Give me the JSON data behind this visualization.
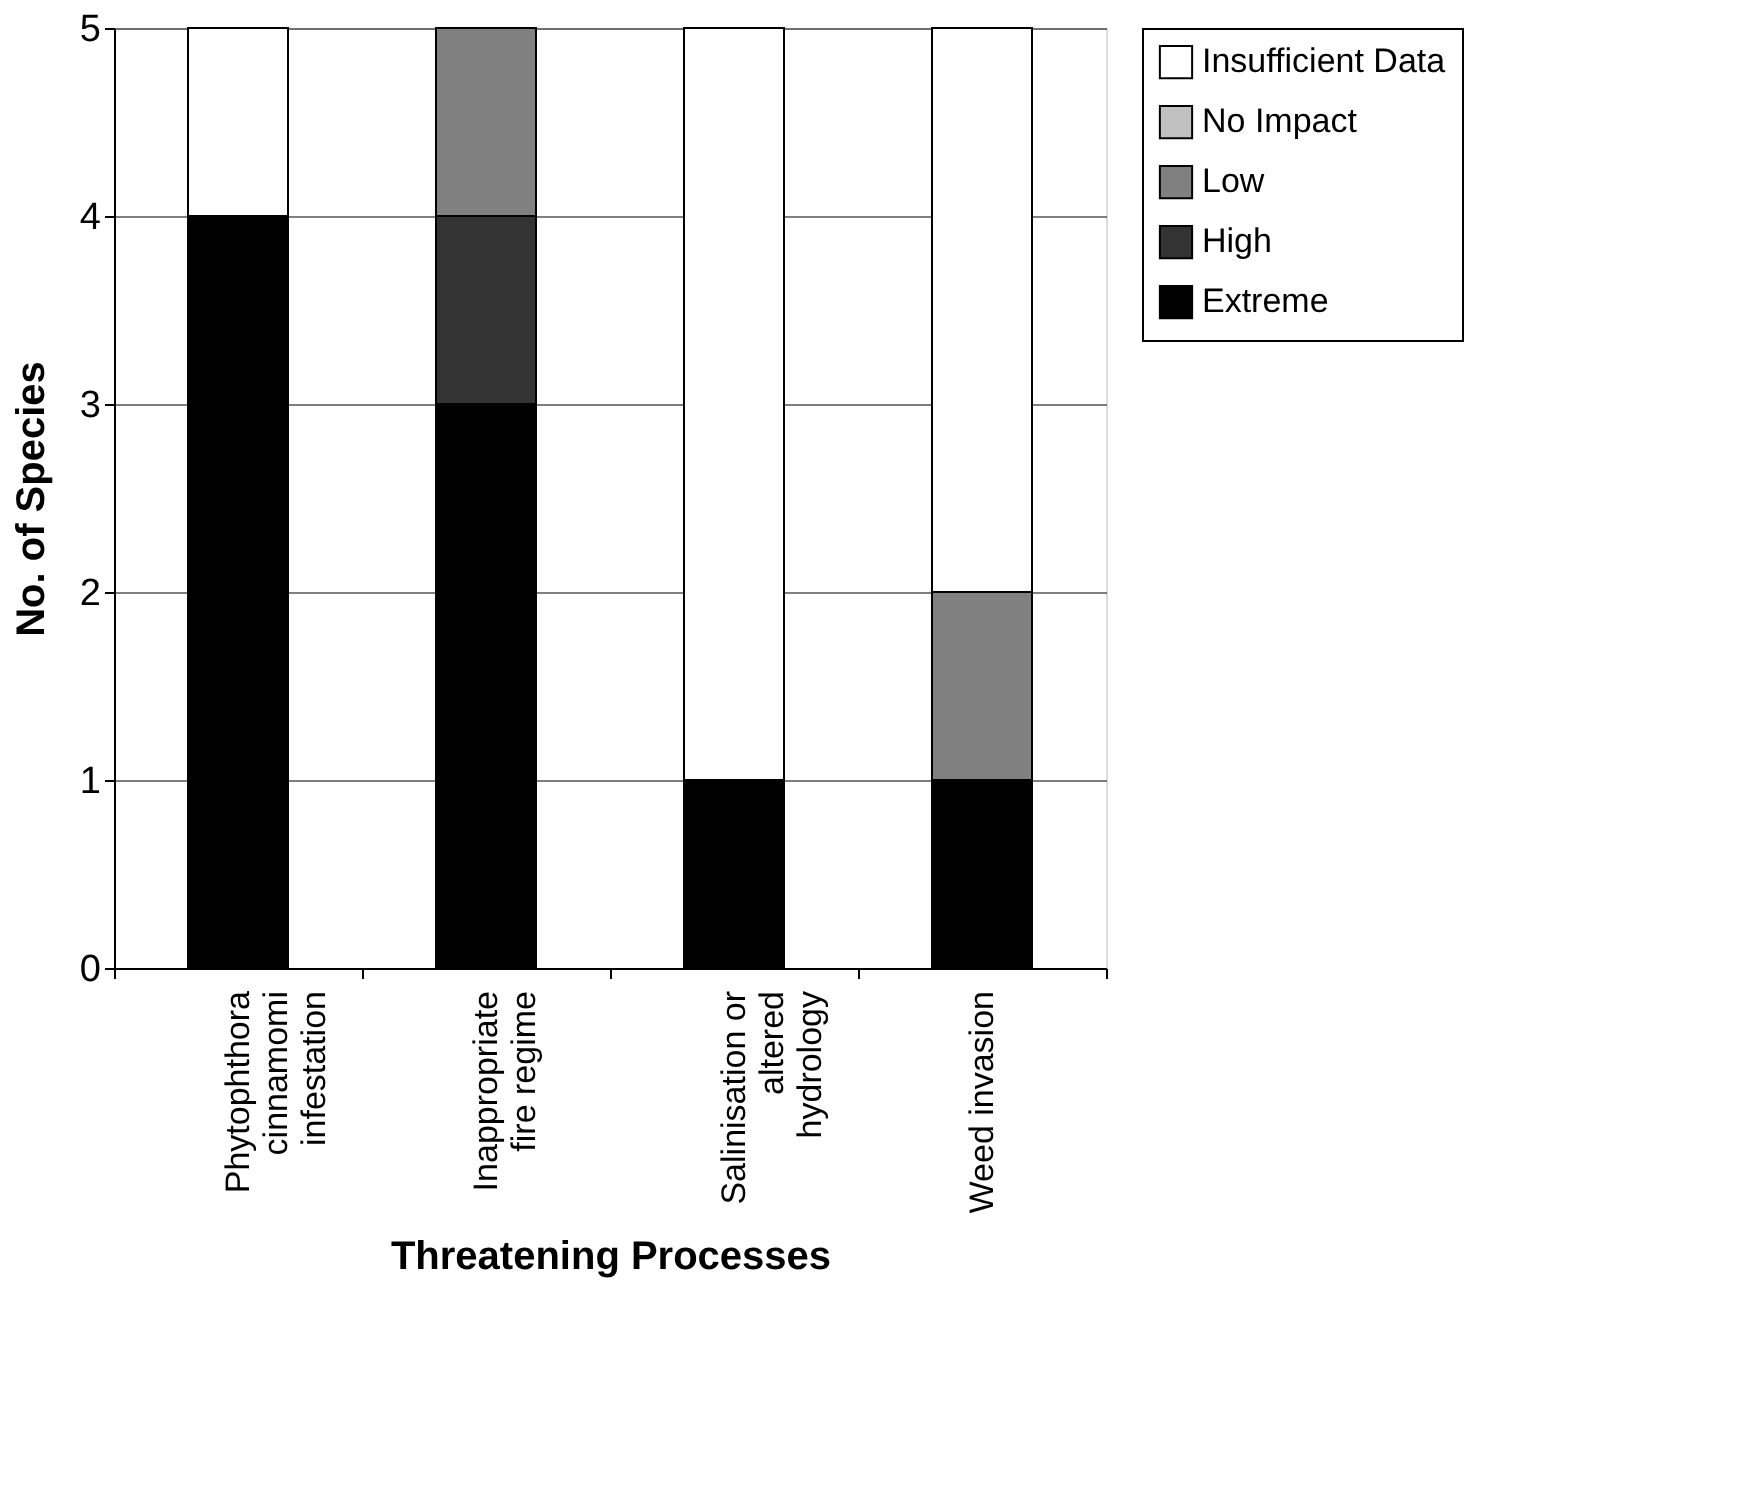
{
  "chart_data": {
    "type": "bar",
    "stacked": true,
    "xlabel": "Threatening Processes",
    "ylabel": "No. of Species",
    "categories": [
      "Phytophthora\ncinnamomi\ninfestation",
      "Inappropriate\nfire regime",
      "Salinisation or\naltered\nhydrology",
      "Weed invasion"
    ],
    "series": [
      {
        "name": "Extreme",
        "color": "#000000",
        "values": [
          4,
          3,
          1,
          1
        ]
      },
      {
        "name": "High",
        "color": "#333333",
        "values": [
          0,
          1,
          0,
          0
        ]
      },
      {
        "name": "Low",
        "color": "#808080",
        "values": [
          0,
          1,
          0,
          1
        ]
      },
      {
        "name": "No Impact",
        "color": "#c0c0c0",
        "values": [
          0,
          0,
          0,
          0
        ]
      },
      {
        "name": "Insufficient Data",
        "color": "#ffffff",
        "values": [
          1,
          0,
          4,
          3
        ]
      }
    ],
    "ylim": [
      0,
      5
    ],
    "yticks": [
      0,
      1,
      2,
      3,
      4,
      5
    ],
    "grid": "y",
    "legend": "right"
  }
}
